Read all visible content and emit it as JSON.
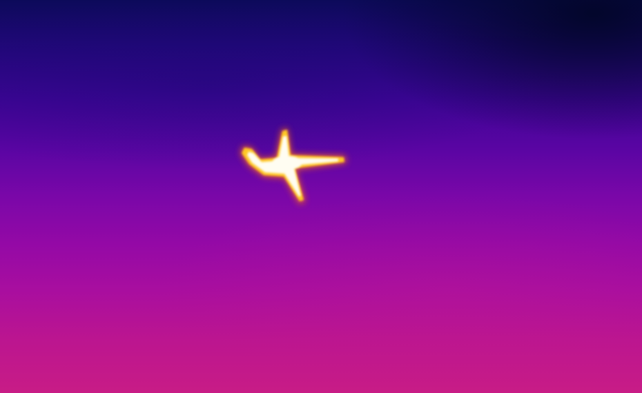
{
  "scene": {
    "subject_icon": "airplane-icon",
    "palette": {
      "sky_top": "#0c0a5a",
      "sky_mid": "#7a07a8",
      "sky_bottom": "#c81c86",
      "hot_core": "#ffffff",
      "hot_glow": "#ffd23a",
      "hot_edge": "#ff7a1a"
    }
  }
}
